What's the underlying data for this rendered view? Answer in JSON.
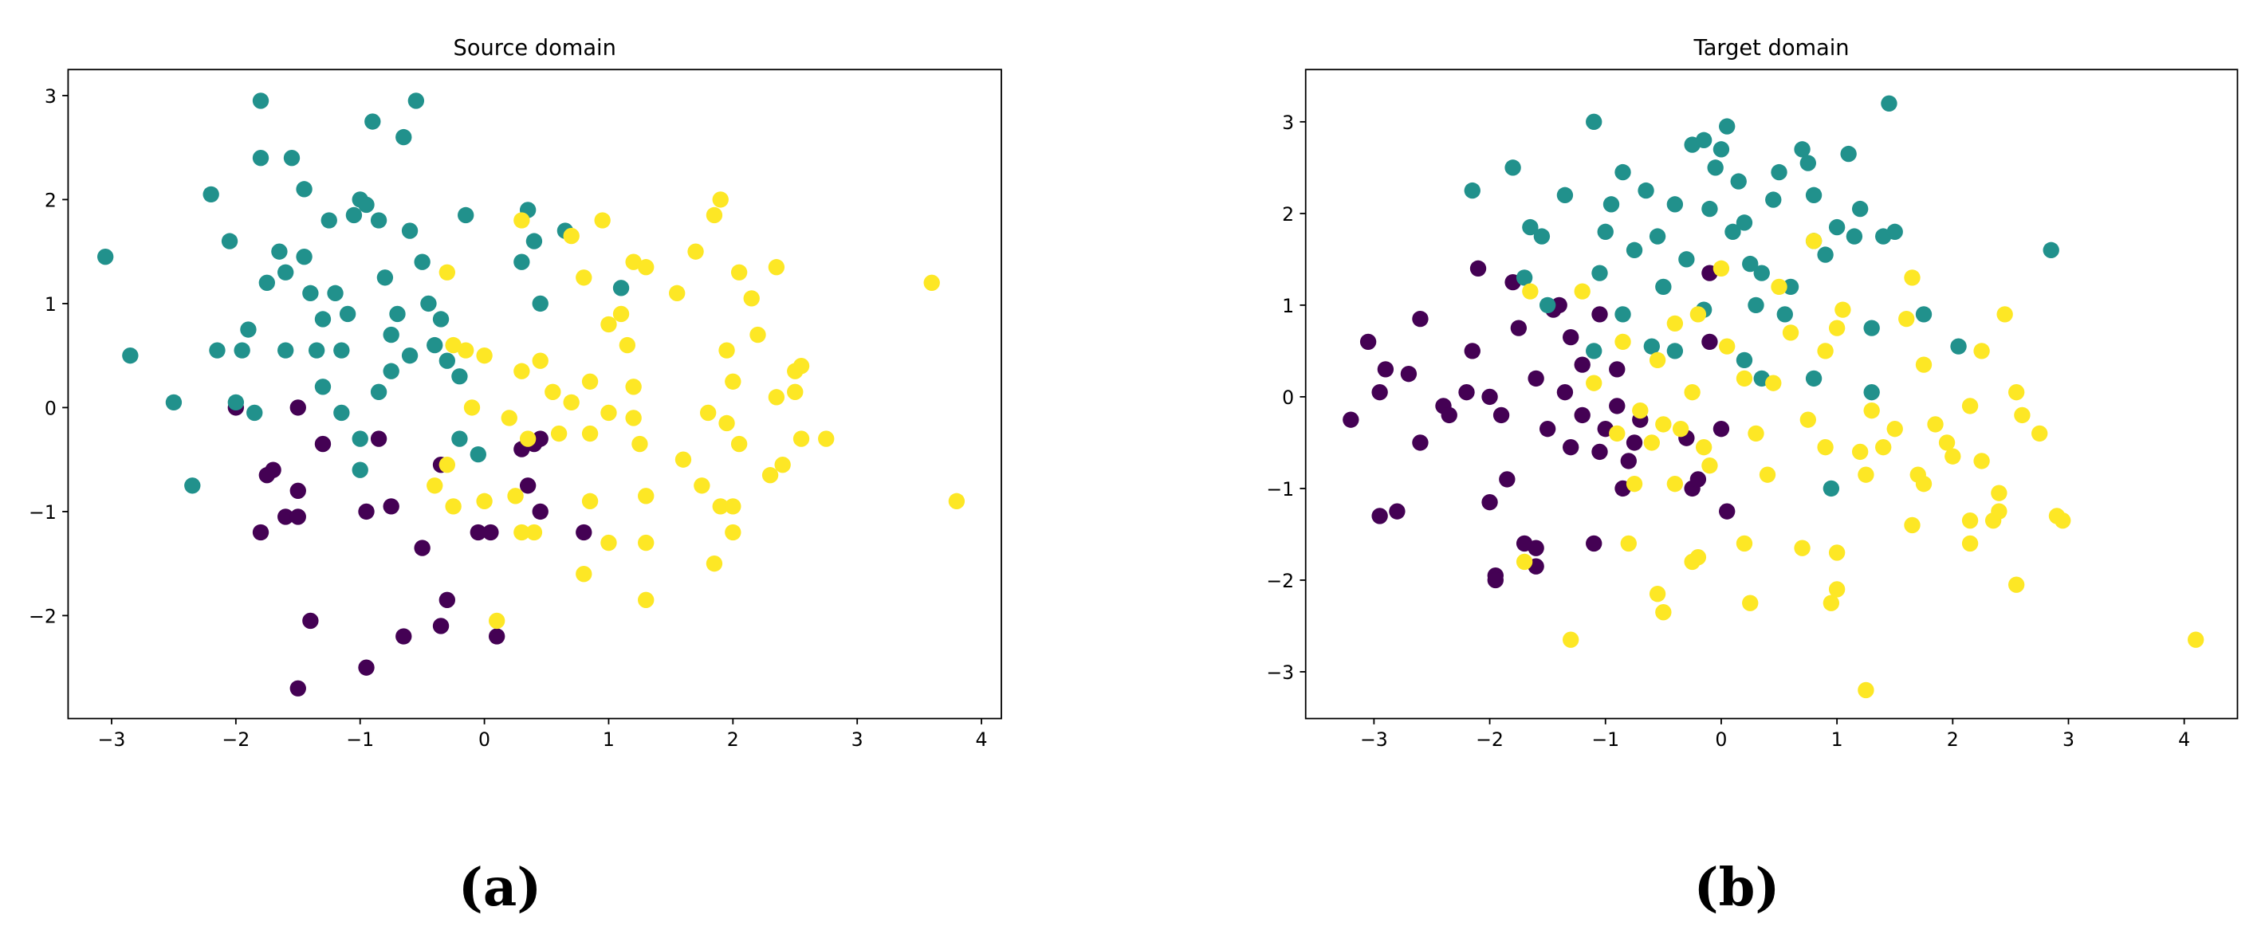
{
  "chart_data": [
    {
      "type": "scatter",
      "title": "Source domain",
      "caption": "(a)",
      "xlim": [
        -3.35,
        4.16
      ],
      "ylim": [
        -2.99,
        3.25
      ],
      "xticks": [
        {
          "value": -3,
          "label": "−3"
        },
        {
          "value": -2,
          "label": "−2"
        },
        {
          "value": -1,
          "label": "−1"
        },
        0,
        1,
        2,
        3,
        4
      ],
      "yticks": [
        {
          "value": -2,
          "label": "−2"
        },
        {
          "value": -1,
          "label": "−1"
        },
        0,
        1,
        2,
        3
      ],
      "series": [
        {
          "color": "#440154",
          "x": [
            -1.5,
            -2.0,
            -1.7,
            -1.75,
            -1.6,
            -1.5,
            -1.8,
            -1.5,
            -1.3,
            -0.85,
            -0.75,
            -0.95,
            -1.4,
            -1.5,
            -0.95,
            -0.65,
            -0.35,
            -0.3,
            -0.5,
            -0.35,
            0.05,
            -0.05,
            0.1,
            0.3,
            0.35,
            0.45,
            0.8,
            0.45,
            0.4
          ],
          "y": [
            0.0,
            0.0,
            -0.6,
            -0.65,
            -1.05,
            -1.05,
            -1.2,
            -0.8,
            -0.35,
            -0.3,
            -0.95,
            -1.0,
            -2.05,
            -2.7,
            -2.5,
            -2.2,
            -2.1,
            -1.85,
            -1.35,
            -0.55,
            -1.2,
            -1.2,
            -2.2,
            -0.4,
            -0.75,
            -1.0,
            -1.2,
            -0.3,
            -0.35
          ]
        },
        {
          "color": "#21918c",
          "x": [
            -3.05,
            -2.85,
            -2.5,
            -2.35,
            -2.2,
            -2.15,
            -2.05,
            -2.0,
            -1.95,
            -1.9,
            -1.85,
            -1.8,
            -1.8,
            -1.75,
            -1.65,
            -1.6,
            -1.55,
            -1.45,
            -1.4,
            -1.3,
            -1.25,
            -1.2,
            -1.15,
            -1.1,
            -1.05,
            -1.0,
            -0.95,
            -0.9,
            -0.85,
            -0.8,
            -0.75,
            -0.7,
            -0.65,
            -0.6,
            -0.55,
            -0.5,
            -0.45,
            -0.4,
            -0.35,
            -0.3,
            -0.2,
            -0.15,
            -0.05,
            -0.2,
            -1.0,
            -1.0,
            -1.3,
            -1.45,
            -1.15,
            -0.85,
            -0.6,
            0.35,
            0.3,
            0.4,
            0.45,
            0.65,
            1.1,
            -1.6,
            -1.35,
            -0.75
          ],
          "y": [
            1.45,
            0.5,
            0.05,
            -0.75,
            2.05,
            0.55,
            1.6,
            0.05,
            0.55,
            0.75,
            -0.05,
            2.95,
            2.4,
            1.2,
            1.5,
            1.3,
            2.4,
            2.1,
            1.1,
            0.85,
            1.8,
            1.1,
            0.55,
            0.9,
            1.85,
            2.0,
            1.95,
            2.75,
            1.8,
            1.25,
            0.7,
            0.9,
            2.6,
            1.7,
            2.95,
            1.4,
            1.0,
            0.6,
            0.85,
            0.45,
            0.3,
            1.85,
            -0.45,
            -0.3,
            -0.3,
            -0.6,
            0.2,
            1.45,
            -0.05,
            0.15,
            0.5,
            1.9,
            1.4,
            1.6,
            1.0,
            1.7,
            1.15,
            0.55,
            0.55,
            0.35
          ]
        },
        {
          "color": "#fde725",
          "x": [
            3.6,
            3.8,
            0.3,
            0.7,
            0.8,
            0.95,
            1.2,
            1.3,
            1.55,
            1.7,
            1.85,
            1.9,
            2.05,
            2.15,
            2.35,
            2.2,
            1.95,
            2.5,
            2.55,
            2.35,
            2.5,
            2.75,
            2.55,
            2.4,
            2.3,
            2.05,
            1.95,
            1.8,
            1.6,
            1.75,
            1.9,
            2.0,
            2.0,
            1.85,
            1.3,
            1.3,
            1.0,
            0.8,
            0.85,
            0.4,
            0.3,
            0.25,
            0.0,
            -0.25,
            -0.4,
            -0.3,
            0.1,
            0.2,
            0.3,
            0.45,
            0.55,
            0.7,
            0.85,
            1.0,
            1.1,
            1.15,
            1.2,
            1.0,
            1.2,
            1.25,
            0.85,
            0.6,
            0.35,
            -0.25,
            -0.15,
            0.0,
            -0.3,
            -0.1,
            1.3,
            2.0
          ],
          "y": [
            1.2,
            -0.9,
            1.8,
            1.65,
            1.25,
            1.8,
            1.4,
            1.35,
            1.1,
            1.5,
            1.85,
            2.0,
            1.3,
            1.05,
            1.35,
            0.7,
            0.55,
            0.35,
            0.4,
            0.1,
            0.15,
            -0.3,
            -0.3,
            -0.55,
            -0.65,
            -0.35,
            -0.15,
            -0.05,
            -0.5,
            -0.75,
            -0.95,
            -0.95,
            -1.2,
            -1.5,
            -1.85,
            -1.3,
            -1.3,
            -1.6,
            -0.9,
            -1.2,
            -1.2,
            -0.85,
            -0.9,
            -0.95,
            -0.75,
            -0.55,
            -2.05,
            -0.1,
            0.35,
            0.45,
            0.15,
            0.05,
            0.25,
            0.8,
            0.9,
            0.6,
            0.2,
            -0.05,
            -0.1,
            -0.35,
            -0.25,
            -0.25,
            -0.3,
            0.6,
            0.55,
            0.5,
            1.3,
            0.0,
            -0.85,
            0.25
          ]
        }
      ]
    },
    {
      "type": "scatter",
      "title": "Target domain",
      "caption": "(b)",
      "xlim": [
        -3.59,
        4.46
      ],
      "ylim": [
        -3.51,
        3.57
      ],
      "xticks": [
        {
          "value": -3,
          "label": "−3"
        },
        {
          "value": -2,
          "label": "−2"
        },
        {
          "value": -1,
          "label": "−1"
        },
        0,
        1,
        2,
        3,
        4
      ],
      "yticks": [
        {
          "value": -3,
          "label": "−3"
        },
        {
          "value": -2,
          "label": "−2"
        },
        {
          "value": -1,
          "label": "−1"
        },
        0,
        1,
        2,
        3
      ],
      "series": [
        {
          "color": "#440154",
          "x": [
            -3.2,
            -3.05,
            -2.95,
            -2.9,
            -2.95,
            -2.8,
            -2.7,
            -2.6,
            -2.6,
            -2.4,
            -2.35,
            -2.2,
            -2.15,
            -2.1,
            -2.0,
            -2.0,
            -1.95,
            -1.95,
            -1.9,
            -1.85,
            -1.8,
            -1.75,
            -1.7,
            -1.6,
            -1.6,
            -1.5,
            -1.45,
            -1.4,
            -1.35,
            -1.3,
            -1.2,
            -1.2,
            -1.1,
            -1.05,
            -1.05,
            -1.0,
            -0.9,
            -0.85,
            -0.8,
            -0.75,
            -0.7,
            -0.9,
            -0.3,
            -0.25,
            -0.2,
            -0.1,
            0.0,
            0.05,
            -0.1,
            -1.6,
            -1.3
          ],
          "y": [
            -0.25,
            0.6,
            0.05,
            0.3,
            -1.3,
            -1.25,
            0.25,
            0.85,
            -0.5,
            -0.1,
            -0.2,
            0.05,
            0.5,
            1.4,
            0.0,
            -1.15,
            -1.95,
            -2.0,
            -0.2,
            -0.9,
            1.25,
            0.75,
            -1.6,
            -1.65,
            -1.85,
            -0.35,
            0.95,
            1.0,
            0.05,
            -0.55,
            -0.2,
            0.35,
            -1.6,
            0.9,
            -0.6,
            -0.35,
            0.3,
            -1.0,
            -0.7,
            -0.5,
            -0.25,
            -0.1,
            -0.45,
            -1.0,
            -0.9,
            0.6,
            -0.35,
            -1.25,
            1.35,
            0.2,
            0.65
          ]
        },
        {
          "color": "#21918c",
          "x": [
            -2.15,
            -1.8,
            -1.65,
            -1.55,
            -1.7,
            -1.5,
            -1.35,
            -1.1,
            -1.05,
            -1.0,
            -0.95,
            -0.85,
            -0.75,
            -0.65,
            -0.55,
            -0.5,
            -0.4,
            -0.3,
            -0.25,
            -0.15,
            -0.05,
            -0.1,
            0.0,
            0.05,
            0.1,
            0.15,
            0.2,
            0.25,
            0.3,
            0.35,
            0.45,
            0.5,
            0.6,
            0.7,
            0.75,
            0.8,
            0.8,
            0.9,
            1.0,
            1.1,
            1.15,
            1.2,
            1.3,
            1.4,
            1.45,
            1.5,
            1.75,
            2.05,
            2.85,
            0.2,
            0.35,
            0.95,
            1.3,
            0.8,
            -0.85,
            -0.6,
            -0.4,
            -0.15,
            0.55,
            -1.1
          ],
          "y": [
            2.25,
            2.5,
            1.85,
            1.75,
            1.3,
            1.0,
            2.2,
            3.0,
            1.35,
            1.8,
            2.1,
            2.45,
            1.6,
            2.25,
            1.75,
            1.2,
            2.1,
            1.5,
            2.75,
            2.8,
            2.5,
            2.05,
            2.7,
            2.95,
            1.8,
            2.35,
            1.9,
            1.45,
            1.0,
            1.35,
            2.15,
            2.45,
            1.2,
            2.7,
            2.55,
            2.2,
            1.7,
            1.55,
            1.85,
            2.65,
            1.75,
            2.05,
            0.75,
            1.75,
            3.2,
            1.8,
            0.9,
            0.55,
            1.6,
            0.4,
            0.2,
            -1.0,
            0.05,
            0.2,
            0.9,
            0.55,
            0.5,
            0.95,
            0.9,
            0.5
          ]
        },
        {
          "color": "#fde725",
          "x": [
            4.1,
            1.25,
            -1.3,
            -0.5,
            -0.55,
            -0.25,
            -0.2,
            0.2,
            0.25,
            0.7,
            0.95,
            1.0,
            1.0,
            1.25,
            1.65,
            1.7,
            1.75,
            2.15,
            2.15,
            2.25,
            2.35,
            2.4,
            2.4,
            2.55,
            2.9,
            2.95,
            2.75,
            2.55,
            2.6,
            2.45,
            2.25,
            2.15,
            1.95,
            1.75,
            1.65,
            1.6,
            1.4,
            1.2,
            1.05,
            1.0,
            0.9,
            0.9,
            0.8,
            0.75,
            0.6,
            0.45,
            0.4,
            0.2,
            0.05,
            0.0,
            -0.1,
            -0.15,
            -0.25,
            -0.35,
            -0.4,
            -0.5,
            -0.6,
            -0.75,
            -0.8,
            -0.55,
            -0.4,
            -0.2,
            -0.9,
            -1.1,
            -1.2,
            -1.65,
            -1.7,
            -0.85,
            -0.7,
            0.5,
            1.3,
            1.85,
            2.0,
            0.3,
            1.5
          ],
          "y": [
            -2.65,
            -3.2,
            -2.65,
            -2.35,
            -2.15,
            -1.8,
            -1.75,
            -1.6,
            -2.25,
            -1.65,
            -2.25,
            -2.1,
            -1.7,
            -0.85,
            -1.4,
            -0.85,
            -0.95,
            -1.35,
            -1.6,
            -0.7,
            -1.35,
            -1.25,
            -1.05,
            -2.05,
            -1.3,
            -1.35,
            -0.4,
            0.05,
            -0.2,
            0.9,
            0.5,
            -0.1,
            -0.5,
            0.35,
            1.3,
            0.85,
            -0.55,
            -0.6,
            0.95,
            0.75,
            0.5,
            -0.55,
            1.7,
            -0.25,
            0.7,
            0.15,
            -0.85,
            0.2,
            0.55,
            1.4,
            -0.75,
            -0.55,
            0.05,
            -0.35,
            -0.95,
            -0.3,
            -0.5,
            -0.95,
            -1.6,
            0.4,
            0.8,
            0.9,
            -0.4,
            0.15,
            1.15,
            1.15,
            -1.8,
            0.6,
            -0.15,
            1.2,
            -0.15,
            -0.3,
            -0.65,
            -0.4,
            -0.35
          ]
        }
      ]
    }
  ]
}
